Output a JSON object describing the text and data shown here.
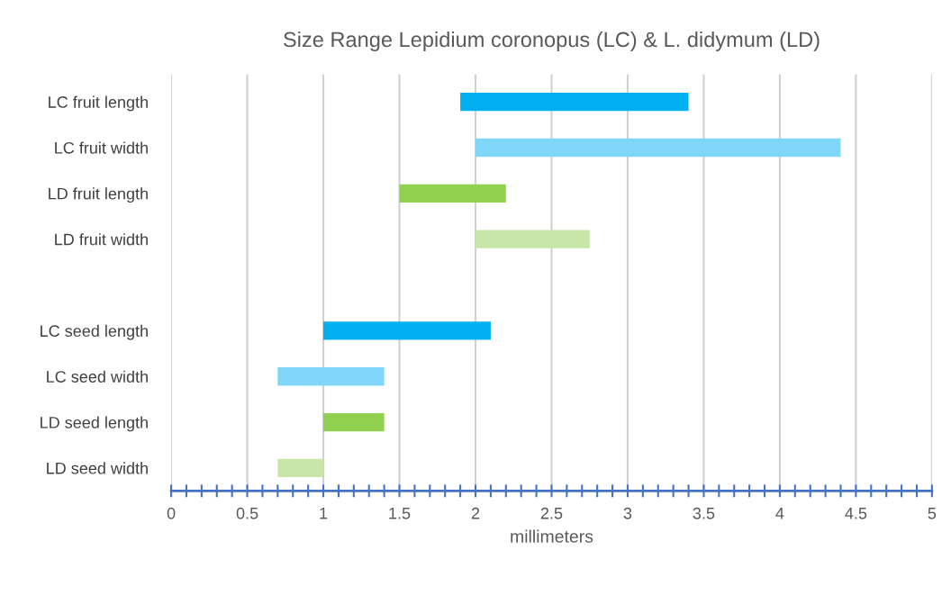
{
  "chart_data": {
    "type": "bar",
    "orientation": "horizontal",
    "title": "Size Range Lepidium coronopus (LC) & L. didymum (LD)",
    "xlabel": "millimeters",
    "categories": [
      "LC fruit length",
      "LC fruit width",
      "LD fruit length",
      "LD fruit width",
      null,
      "LC seed length",
      "LC seed width",
      "LD seed length",
      "LD seed width"
    ],
    "base": [
      1.9,
      2.0,
      1.5,
      2.0,
      null,
      1.0,
      0.7,
      1.0,
      0.7
    ],
    "values": [
      1.5,
      2.4,
      0.7,
      0.75,
      null,
      1.1,
      0.7,
      0.4,
      0.3
    ],
    "colors": [
      "#00b0f0",
      "#7fd6f7",
      "#92d050",
      "#c8e6a8",
      null,
      "#00b0f0",
      "#7fd6f7",
      "#92d050",
      "#c8e6a8"
    ],
    "xlim": [
      0,
      5
    ],
    "xticks": [
      0,
      {
        "value": 0.1,
        "label": null
      },
      {
        "value": 0.2,
        "label": null
      },
      {
        "value": 0.3,
        "label": null
      },
      {
        "value": 0.4,
        "label": null
      },
      0.5,
      {
        "value": 0.6,
        "label": null
      },
      {
        "value": 0.7,
        "label": null
      },
      {
        "value": 0.8,
        "label": null
      },
      {
        "value": 0.9,
        "label": null
      },
      1,
      {
        "value": 1.1,
        "label": null
      },
      {
        "value": 1.2,
        "label": null
      },
      {
        "value": 1.3,
        "label": null
      },
      {
        "value": 1.4,
        "label": null
      },
      1.5,
      {
        "value": 1.6,
        "label": null
      },
      {
        "value": 1.7,
        "label": null
      },
      {
        "value": 1.8,
        "label": null
      },
      {
        "value": 1.9,
        "label": null
      },
      2,
      {
        "value": 2.1,
        "label": null
      },
      {
        "value": 2.2,
        "label": null
      },
      {
        "value": 2.3,
        "label": null
      },
      {
        "value": 2.4,
        "label": null
      },
      2.5,
      {
        "value": 2.6,
        "label": null
      },
      {
        "value": 2.7,
        "label": null
      },
      {
        "value": 2.8,
        "label": null
      },
      {
        "value": 2.9,
        "label": null
      },
      3,
      {
        "value": 3.1,
        "label": null
      },
      {
        "value": 3.2,
        "label": null
      },
      {
        "value": 3.3,
        "label": null
      },
      {
        "value": 3.4,
        "label": null
      },
      3.5,
      {
        "value": 3.6,
        "label": null
      },
      {
        "value": 3.7,
        "label": null
      },
      {
        "value": 3.8,
        "label": null
      },
      {
        "value": 3.9,
        "label": null
      },
      4,
      {
        "value": 4.1,
        "label": null
      },
      {
        "value": 4.2,
        "label": null
      },
      {
        "value": 4.3,
        "label": null
      },
      {
        "value": 4.4,
        "label": null
      },
      4.5,
      {
        "value": 4.6,
        "label": null
      },
      {
        "value": 4.7,
        "label": null
      },
      {
        "value": 4.8,
        "label": null
      },
      {
        "value": 4.9,
        "label": null
      },
      5
    ],
    "grid": "x",
    "legend": false
  }
}
